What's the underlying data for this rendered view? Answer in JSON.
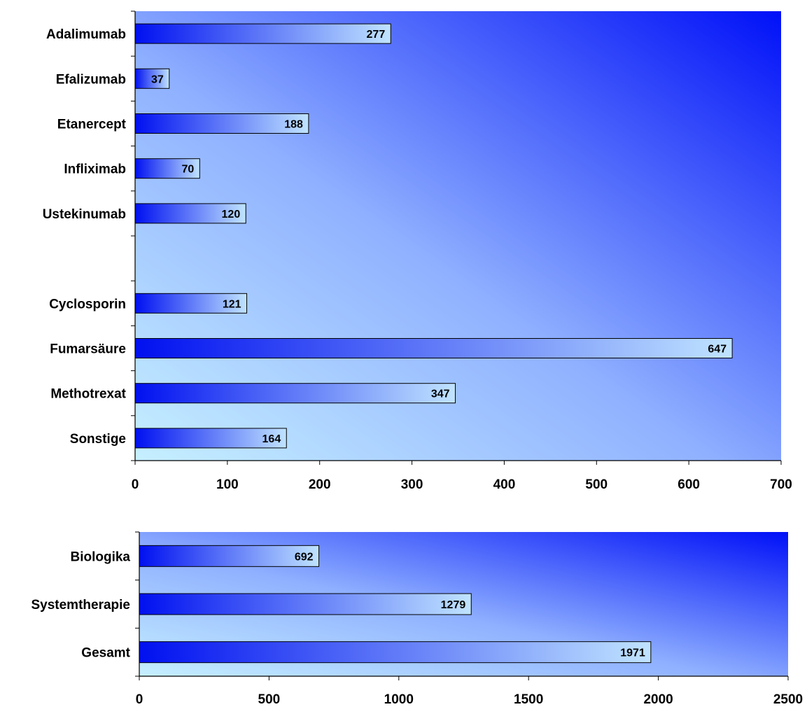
{
  "chart_data": [
    {
      "type": "bar",
      "orientation": "horizontal",
      "categories": [
        "Adalimumab",
        "Efalizumab",
        "Etanercept",
        "Infliximab",
        "Ustekinumab",
        "",
        "Cyclosporin",
        "Fumarsäure",
        "Methotrexat",
        "Sonstige"
      ],
      "values": [
        277,
        37,
        188,
        70,
        120,
        null,
        121,
        647,
        347,
        164
      ],
      "data_labels": [
        "277",
        "37",
        "188",
        "70",
        "120",
        "",
        "121",
        "647",
        "347",
        "164"
      ],
      "xlim": [
        0,
        700
      ],
      "xticks": [
        "0",
        "100",
        "200",
        "300",
        "400",
        "500",
        "600",
        "700"
      ],
      "xtick_values": [
        0,
        100,
        200,
        300,
        400,
        500,
        600,
        700
      ],
      "title": "",
      "xlabel": "",
      "ylabel": "",
      "grid": false,
      "colors": {
        "bar_dark": "#0010f0",
        "bar_light": "#c0e4ff",
        "plot_top_right": "#0010f8",
        "plot_bottom_left": "#c6f0ff"
      }
    },
    {
      "type": "bar",
      "orientation": "horizontal",
      "categories": [
        "Biologika",
        "Systemtherapie",
        "Gesamt"
      ],
      "values": [
        692,
        1279,
        1971
      ],
      "data_labels": [
        "692",
        "1279",
        "1971"
      ],
      "xlim": [
        0,
        2500
      ],
      "xticks": [
        "0",
        "500",
        "1000",
        "1500",
        "2000",
        "2500"
      ],
      "xtick_values": [
        0,
        500,
        1000,
        1500,
        2000,
        2500
      ],
      "title": "",
      "xlabel": "",
      "ylabel": "",
      "grid": false,
      "colors": {
        "bar_dark": "#0010f0",
        "bar_light": "#c0e4ff",
        "plot_top_right": "#0010f8",
        "plot_bottom_left": "#c6f0ff"
      }
    }
  ]
}
